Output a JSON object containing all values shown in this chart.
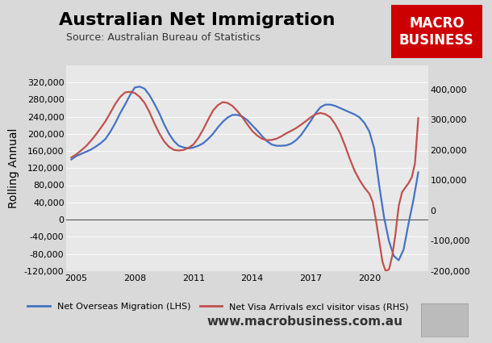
{
  "title": "Australian Net Immigration",
  "source": "Source: Australian Bureau of Statistics",
  "ylabel_left": "Rolling Annual",
  "website": "www.macrobusiness.com.au",
  "lhs_label": "Net Overseas Migration (LHS)",
  "rhs_label": "Net Visa Arrivals excl visitor visas (RHS)",
  "lhs_color": "#4472C4",
  "rhs_color": "#C0504D",
  "fig_bg_color": "#D9D9D9",
  "plot_bg_color": "#E8E8E8",
  "lhs_ylim": [
    -120000,
    360000
  ],
  "rhs_ylim": [
    -200000,
    480000
  ],
  "lhs_yticks": [
    -120000,
    -80000,
    -40000,
    0,
    40000,
    80000,
    120000,
    160000,
    200000,
    240000,
    280000,
    320000
  ],
  "rhs_yticks": [
    -200000,
    -100000,
    0,
    100000,
    200000,
    300000,
    400000
  ],
  "lhs_data_x": [
    2004.75,
    2005.0,
    2005.25,
    2005.5,
    2005.75,
    2006.0,
    2006.25,
    2006.5,
    2006.75,
    2007.0,
    2007.25,
    2007.5,
    2007.75,
    2008.0,
    2008.25,
    2008.5,
    2008.75,
    2009.0,
    2009.25,
    2009.5,
    2009.75,
    2010.0,
    2010.25,
    2010.5,
    2010.75,
    2011.0,
    2011.25,
    2011.5,
    2011.75,
    2012.0,
    2012.25,
    2012.5,
    2012.75,
    2013.0,
    2013.25,
    2013.5,
    2013.75,
    2014.0,
    2014.25,
    2014.5,
    2014.75,
    2015.0,
    2015.25,
    2015.5,
    2015.75,
    2016.0,
    2016.25,
    2016.5,
    2016.75,
    2017.0,
    2017.25,
    2017.5,
    2017.75,
    2018.0,
    2018.25,
    2018.5,
    2018.75,
    2019.0,
    2019.25,
    2019.5,
    2019.75,
    2020.0,
    2020.25,
    2020.5,
    2020.75,
    2021.0,
    2021.25,
    2021.5,
    2021.75,
    2022.0,
    2022.25,
    2022.5
  ],
  "lhs_data_y": [
    140000,
    148000,
    153000,
    158000,
    163000,
    170000,
    178000,
    188000,
    205000,
    225000,
    248000,
    268000,
    290000,
    308000,
    310000,
    305000,
    290000,
    270000,
    248000,
    222000,
    200000,
    183000,
    172000,
    168000,
    166000,
    168000,
    172000,
    178000,
    188000,
    200000,
    215000,
    228000,
    238000,
    244000,
    244000,
    240000,
    232000,
    220000,
    208000,
    195000,
    183000,
    175000,
    172000,
    172000,
    173000,
    177000,
    185000,
    197000,
    213000,
    230000,
    248000,
    262000,
    268000,
    268000,
    265000,
    260000,
    255000,
    250000,
    245000,
    238000,
    225000,
    205000,
    165000,
    80000,
    5000,
    -50000,
    -85000,
    -95000,
    -70000,
    -10000,
    45000,
    110000
  ],
  "rhs_data_x": [
    2004.75,
    2005.0,
    2005.25,
    2005.5,
    2005.75,
    2006.0,
    2006.25,
    2006.5,
    2006.75,
    2007.0,
    2007.25,
    2007.5,
    2007.75,
    2008.0,
    2008.25,
    2008.5,
    2008.75,
    2009.0,
    2009.25,
    2009.5,
    2009.75,
    2010.0,
    2010.25,
    2010.5,
    2010.75,
    2011.0,
    2011.25,
    2011.5,
    2011.75,
    2012.0,
    2012.25,
    2012.5,
    2012.75,
    2013.0,
    2013.25,
    2013.5,
    2013.75,
    2014.0,
    2014.25,
    2014.5,
    2014.75,
    2015.0,
    2015.25,
    2015.5,
    2015.75,
    2016.0,
    2016.25,
    2016.5,
    2016.75,
    2017.0,
    2017.25,
    2017.5,
    2017.75,
    2018.0,
    2018.25,
    2018.5,
    2018.75,
    2019.0,
    2019.25,
    2019.5,
    2019.75,
    2020.0,
    2020.17,
    2020.33,
    2020.5,
    2020.67,
    2020.83,
    2021.0,
    2021.17,
    2021.33,
    2021.5,
    2021.67,
    2021.83,
    2022.0,
    2022.17,
    2022.33,
    2022.5
  ],
  "rhs_data_y": [
    175000,
    185000,
    198000,
    212000,
    230000,
    250000,
    272000,
    295000,
    323000,
    352000,
    375000,
    390000,
    392000,
    388000,
    375000,
    355000,
    325000,
    288000,
    255000,
    228000,
    210000,
    200000,
    198000,
    200000,
    207000,
    218000,
    240000,
    268000,
    300000,
    330000,
    348000,
    358000,
    355000,
    345000,
    328000,
    308000,
    285000,
    263000,
    248000,
    237000,
    232000,
    233000,
    237000,
    245000,
    255000,
    263000,
    272000,
    283000,
    295000,
    308000,
    318000,
    322000,
    318000,
    308000,
    285000,
    255000,
    215000,
    170000,
    130000,
    100000,
    75000,
    55000,
    28000,
    -30000,
    -100000,
    -170000,
    -200000,
    -195000,
    -150000,
    -80000,
    15000,
    60000,
    75000,
    90000,
    110000,
    155000,
    305000
  ],
  "xlim": [
    2004.5,
    2023.0
  ],
  "xticks": [
    2005,
    2008,
    2011,
    2014,
    2017,
    2020
  ],
  "title_fontsize": 16,
  "source_fontsize": 9,
  "tick_fontsize": 8,
  "ylabel_fontsize": 10,
  "legend_fontsize": 8,
  "website_fontsize": 11,
  "macro_box_color": "#CC0000",
  "macro_text": "MACRO\nBUSINESS"
}
